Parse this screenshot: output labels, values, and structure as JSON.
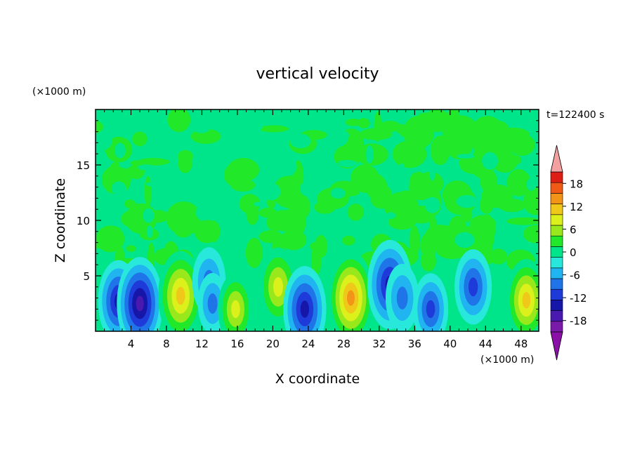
{
  "chart_data": {
    "type": "heatmap",
    "title": "vertical velocity",
    "xlabel": "X coordinate",
    "ylabel": "Z coordinate",
    "x_unit": "(×1000 m)",
    "y_unit": "(×1000 m)",
    "time_label": "t=122400 s",
    "xlim": [
      0,
      50
    ],
    "ylim": [
      0,
      20
    ],
    "x_ticks": [
      4,
      8,
      12,
      16,
      20,
      24,
      28,
      32,
      36,
      40,
      44,
      48
    ],
    "y_ticks": [
      5,
      10,
      15
    ],
    "colorbar": {
      "levels": [
        -21,
        -18,
        -15,
        -12,
        -9,
        -6,
        -3,
        0,
        3,
        6,
        9,
        12,
        15,
        18,
        21
      ],
      "tick_labels": [
        "18",
        "12",
        "6",
        "0",
        "-6",
        "-12",
        "-18"
      ],
      "tick_values": [
        18,
        12,
        6,
        0,
        -6,
        -12,
        -18
      ],
      "colors": [
        "#7a1aa8",
        "#4a1ab0",
        "#1616a8",
        "#1e3ad8",
        "#1f74e8",
        "#20b4f0",
        "#28e8dc",
        "#00e58a",
        "#22e82a",
        "#98e81c",
        "#dcf01c",
        "#f0c81a",
        "#f29418",
        "#f05a14",
        "#dc1e14"
      ],
      "over_color": "#f2a0a0",
      "under_color": "#8a10a8"
    },
    "features": [
      {
        "x": 2.6,
        "z": 2.7,
        "w": -12
      },
      {
        "x": 5.0,
        "z": 2.5,
        "w": -15
      },
      {
        "x": 9.6,
        "z": 3.2,
        "w": 14
      },
      {
        "x": 12.8,
        "z": 4.5,
        "w": -8
      },
      {
        "x": 13.2,
        "z": 2.5,
        "w": -6
      },
      {
        "x": 15.8,
        "z": 2.0,
        "w": 9
      },
      {
        "x": 20.6,
        "z": 4.0,
        "w": 11
      },
      {
        "x": 23.6,
        "z": 2.0,
        "w": -13
      },
      {
        "x": 28.8,
        "z": 3.0,
        "w": 15
      },
      {
        "x": 33.2,
        "z": 4.2,
        "w": -14
      },
      {
        "x": 34.6,
        "z": 3.0,
        "w": -8
      },
      {
        "x": 37.8,
        "z": 2.0,
        "w": -9
      },
      {
        "x": 42.6,
        "z": 4.0,
        "w": -10
      },
      {
        "x": 48.6,
        "z": 2.8,
        "w": 12
      }
    ]
  }
}
